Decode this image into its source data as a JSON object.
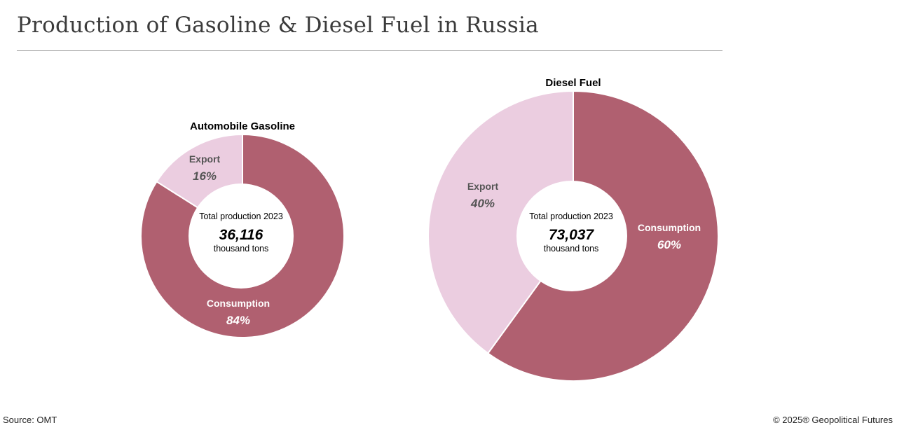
{
  "title": "Production of Gasoline & Diesel Fuel in Russia",
  "source": "Source: OMT",
  "copyright": "© 2025® Geopolitical Futures",
  "colors": {
    "consumption": "#b06070",
    "export": "#ebcde0",
    "text_dark": "#000000",
    "label_muted": "#555555",
    "label_light": "#ffffff"
  },
  "chart_data": [
    {
      "type": "pie",
      "title": "Automobile Gasoline",
      "center": {
        "caption": "Total production 2023",
        "value": "36,116",
        "unit": "thousand tons"
      },
      "slices": [
        {
          "label": "Consumption",
          "pct_label": "84%",
          "value": 84
        },
        {
          "label": "Export",
          "pct_label": "16%",
          "value": 16
        }
      ]
    },
    {
      "type": "pie",
      "title": "Diesel Fuel",
      "center": {
        "caption": "Total production 2023",
        "value": "73,037",
        "unit": "thousand tons"
      },
      "slices": [
        {
          "label": "Consumption",
          "pct_label": "60%",
          "value": 60
        },
        {
          "label": "Export",
          "pct_label": "40%",
          "value": 40
        }
      ]
    }
  ]
}
